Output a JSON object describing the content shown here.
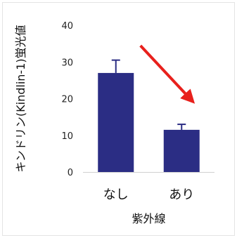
{
  "chart_data": {
    "type": "bar",
    "categories": [
      "なし",
      "あり"
    ],
    "values": [
      27,
      11.5
    ],
    "error_upper": [
      3.5,
      1.5
    ],
    "xlabel": "紫外線",
    "ylabel": "キンドリン(Kindlin-1)蛍光値",
    "ylim": [
      0,
      40
    ],
    "yticks": [
      "0",
      "10",
      "20",
      "30",
      "40"
    ],
    "grid": false,
    "bar_color": "#2b2d84",
    "arrow_color": "#e8201c",
    "annotation": "red downward arrow pointing from the なし bar to the あり bar"
  }
}
